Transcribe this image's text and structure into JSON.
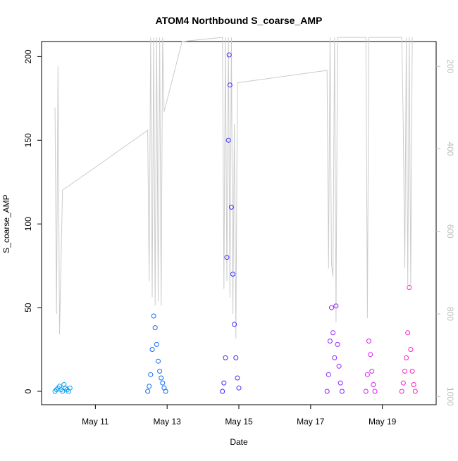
{
  "chart_data": {
    "type": "scatter",
    "title": "ATOM4 Northbound S_coarse_AMP",
    "xlabel": "Date",
    "ylabel": "S_coarse_AMP",
    "x_unit": "days",
    "xlim": [
      "May 9 12:00",
      "May 20 12:00"
    ],
    "ylim": [
      -8,
      209
    ],
    "y_ticks": [
      0,
      50,
      100,
      150,
      200
    ],
    "x_ticks": [
      {
        "label": "May 11",
        "value": "May 11"
      },
      {
        "label": "May 13",
        "value": "May 13"
      },
      {
        "label": "May 15",
        "value": "May 15"
      },
      {
        "label": "May 17",
        "value": "May 17"
      },
      {
        "label": "May 19",
        "value": "May 19"
      }
    ],
    "grid": false,
    "secondary_axis": {
      "side": "right",
      "reversed": true,
      "ylim": [
        1020,
        140
      ],
      "ticks": [
        200,
        400,
        600,
        800,
        1000
      ],
      "color": "#bdbdbd"
    },
    "series": [
      {
        "color": "#0aa0f0",
        "points": [
          [
            "May 9 21:00",
            0
          ],
          [
            "May 9 22:00",
            1
          ],
          [
            "May 9 23:00",
            2
          ],
          [
            "May 10 00:00",
            3
          ],
          [
            "May 10 01:00",
            1
          ],
          [
            "May 10 02:00",
            0
          ],
          [
            "May 10 03:00",
            4
          ],
          [
            "May 10 04:00",
            2
          ],
          [
            "May 10 05:00",
            1
          ],
          [
            "May 10 06:00",
            0
          ],
          [
            "May 10 07:00",
            2
          ]
        ]
      },
      {
        "color": "#0f6aff",
        "points": [
          [
            "May 12 11:00",
            0
          ],
          [
            "May 12 12:00",
            3
          ],
          [
            "May 12 13:00",
            10
          ],
          [
            "May 12 14:00",
            25
          ],
          [
            "May 12 15:00",
            45
          ],
          [
            "May 12 16:00",
            38
          ],
          [
            "May 12 17:00",
            28
          ],
          [
            "May 12 18:00",
            18
          ],
          [
            "May 12 19:00",
            12
          ],
          [
            "May 12 20:00",
            8
          ],
          [
            "May 12 21:00",
            5
          ],
          [
            "May 12 22:00",
            2
          ],
          [
            "May 12 23:00",
            0
          ]
        ]
      },
      {
        "color": "#3a2bff",
        "points": [
          [
            "May 14 13:00",
            0
          ],
          [
            "May 14 14:00",
            5
          ],
          [
            "May 14 15:00",
            20
          ],
          [
            "May 14 16:00",
            80
          ],
          [
            "May 14 17:00",
            150
          ],
          [
            "May 14 17:30",
            201
          ],
          [
            "May 14 18:00",
            183
          ],
          [
            "May 14 19:00",
            110
          ],
          [
            "May 14 20:00",
            70
          ],
          [
            "May 14 21:00",
            40
          ],
          [
            "May 14 22:00",
            20
          ],
          [
            "May 14 23:00",
            8
          ],
          [
            "May 15 00:00",
            2
          ]
        ]
      },
      {
        "color": "#8f22ff",
        "points": [
          [
            "May 17 11:00",
            0
          ],
          [
            "May 17 12:00",
            10
          ],
          [
            "May 17 13:00",
            30
          ],
          [
            "May 17 14:00",
            50
          ],
          [
            "May 17 15:00",
            35
          ],
          [
            "May 17 16:00",
            20
          ],
          [
            "May 17 17:00",
            51
          ],
          [
            "May 17 18:00",
            28
          ],
          [
            "May 17 19:00",
            15
          ],
          [
            "May 17 20:00",
            5
          ],
          [
            "May 17 21:00",
            0
          ]
        ]
      },
      {
        "color": "#d91cf5",
        "points": [
          [
            "May 18 13:00",
            0
          ],
          [
            "May 18 14:00",
            10
          ],
          [
            "May 18 15:00",
            30
          ],
          [
            "May 18 16:00",
            22
          ],
          [
            "May 18 17:00",
            12
          ],
          [
            "May 18 18:00",
            4
          ],
          [
            "May 18 19:00",
            0
          ]
        ]
      },
      {
        "color": "#ff1ec6",
        "points": [
          [
            "May 19 13:00",
            0
          ],
          [
            "May 19 14:00",
            5
          ],
          [
            "May 19 15:00",
            12
          ],
          [
            "May 19 16:00",
            20
          ],
          [
            "May 19 17:00",
            35
          ],
          [
            "May 19 18:00",
            62
          ],
          [
            "May 19 19:00",
            25
          ],
          [
            "May 19 20:00",
            12
          ],
          [
            "May 19 21:00",
            4
          ],
          [
            "May 19 22:00",
            0
          ]
        ]
      }
    ],
    "line": {
      "color": "#cccccc",
      "points": [
        [
          "May 9 21:00",
          300
        ],
        [
          "May 9 22:00",
          800
        ],
        [
          "May 9 23:00",
          200
        ],
        [
          "May 10 00:00",
          850
        ],
        [
          "May 10 02:00",
          500
        ],
        [
          "May 10 14:00",
          470
        ],
        [
          "May 12 11:00",
          355
        ],
        [
          "May 12 12:00",
          720
        ],
        [
          "May 12 13:00",
          130
        ],
        [
          "May 12 14:00",
          760
        ],
        [
          "May 12 15:00",
          130
        ],
        [
          "May 12 16:00",
          780
        ],
        [
          "May 12 17:00",
          130
        ],
        [
          "May 12 18:00",
          770
        ],
        [
          "May 12 19:00",
          130
        ],
        [
          "May 12 20:00",
          780
        ],
        [
          "May 12 21:00",
          130
        ],
        [
          "May 12 22:00",
          310
        ],
        [
          "May 13 10:00",
          140
        ],
        [
          "May 14 13:00",
          130
        ],
        [
          "May 14 14:00",
          740
        ],
        [
          "May 14 15:00",
          130
        ],
        [
          "May 14 16:00",
          720
        ],
        [
          "May 14 17:00",
          130
        ],
        [
          "May 14 18:00",
          760
        ],
        [
          "May 14 19:00",
          130
        ],
        [
          "May 14 20:00",
          800
        ],
        [
          "May 14 21:00",
          340
        ],
        [
          "May 14 22:00",
          860
        ],
        [
          "May 14 23:00",
          240
        ],
        [
          "May 17 11:00",
          210
        ],
        [
          "May 17 12:00",
          690
        ],
        [
          "May 17 13:00",
          130
        ],
        [
          "May 17 14:00",
          680
        ],
        [
          "May 17 15:00",
          710
        ],
        [
          "May 17 16:00",
          130
        ],
        [
          "May 17 17:00",
          820
        ],
        [
          "May 17 18:00",
          130
        ],
        [
          "May 18 13:00",
          130
        ],
        [
          "May 18 14:00",
          810
        ],
        [
          "May 18 15:00",
          130
        ],
        [
          "May 19 13:00",
          130
        ],
        [
          "May 19 14:00",
          340
        ],
        [
          "May 19 15:00",
          690
        ],
        [
          "May 19 16:00",
          130
        ],
        [
          "May 19 17:00",
          730
        ],
        [
          "May 19 18:00",
          130
        ],
        [
          "May 19 19:00",
          730
        ],
        [
          "May 19 20:00",
          130
        ]
      ]
    }
  }
}
